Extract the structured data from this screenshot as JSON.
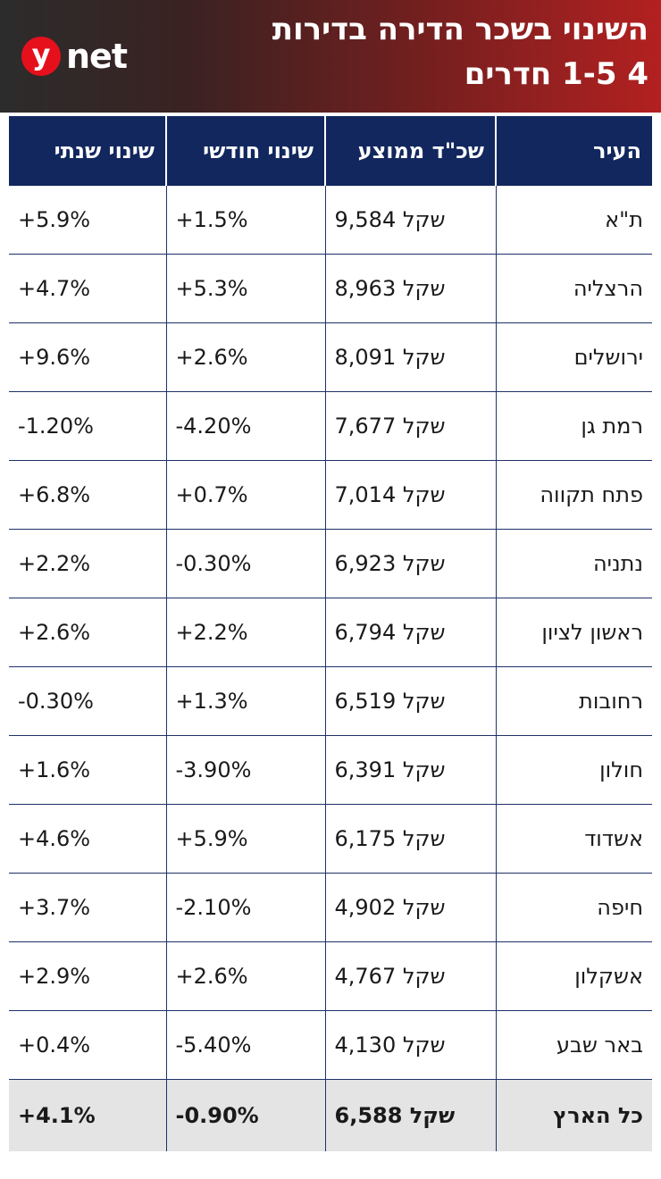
{
  "header": {
    "title_line1": "השינוי בשכר הדירה בדירות",
    "title_line2": "4 1-5 חדרים",
    "logo_y": "y",
    "logo_net": "net"
  },
  "table": {
    "headers": [
      "העיר",
      "שכ\"ד ממוצע",
      "שינוי חודשי",
      "שינוי שנתי"
    ],
    "rows": [
      {
        "city": "ת\"א",
        "rent": "9,584 שקל",
        "monthly": "+1.5%",
        "yearly": "+5.9%"
      },
      {
        "city": "הרצליה",
        "rent": "8,963 שקל",
        "monthly": "+5.3%",
        "yearly": "+4.7%"
      },
      {
        "city": "ירושלים",
        "rent": "8,091 שקל",
        "monthly": "+2.6%",
        "yearly": "+9.6%"
      },
      {
        "city": "רמת גן",
        "rent": "7,677 שקל",
        "monthly": "-4.20%",
        "yearly": "-1.20%"
      },
      {
        "city": "פתח תקווה",
        "rent": "7,014 שקל",
        "monthly": "+0.7%",
        "yearly": "+6.8%"
      },
      {
        "city": "נתניה",
        "rent": "6,923 שקל",
        "monthly": "-0.30%",
        "yearly": "+2.2%"
      },
      {
        "city": "ראשון לציון",
        "rent": "6,794 שקל",
        "monthly": "+2.2%",
        "yearly": "+2.6%"
      },
      {
        "city": "רחובות",
        "rent": "6,519 שקל",
        "monthly": "+1.3%",
        "yearly": "-0.30%"
      },
      {
        "city": "חולון",
        "rent": "6,391 שקל",
        "monthly": "-3.90%",
        "yearly": "+1.6%"
      },
      {
        "city": "אשדוד",
        "rent": "6,175 שקל",
        "monthly": "+5.9%",
        "yearly": "+4.6%"
      },
      {
        "city": "חיפה",
        "rent": "4,902 שקל",
        "monthly": "-2.10%",
        "yearly": "+3.7%"
      },
      {
        "city": "אשקלון",
        "rent": "4,767 שקל",
        "monthly": "+2.6%",
        "yearly": "+2.9%"
      },
      {
        "city": "באר שבע",
        "rent": "4,130 שקל",
        "monthly": "-5.40%",
        "yearly": "+0.4%"
      }
    ],
    "total": {
      "city": "כל הארץ",
      "rent": "6,588 שקל",
      "monthly": "-0.90%",
      "yearly": "+4.1%"
    }
  },
  "colors": {
    "header_dark": "#2c2c2c",
    "header_red": "#b32020",
    "table_header_bg": "#12275e",
    "total_row_bg": "#e4e4e4",
    "logo_red": "#e5101c"
  }
}
